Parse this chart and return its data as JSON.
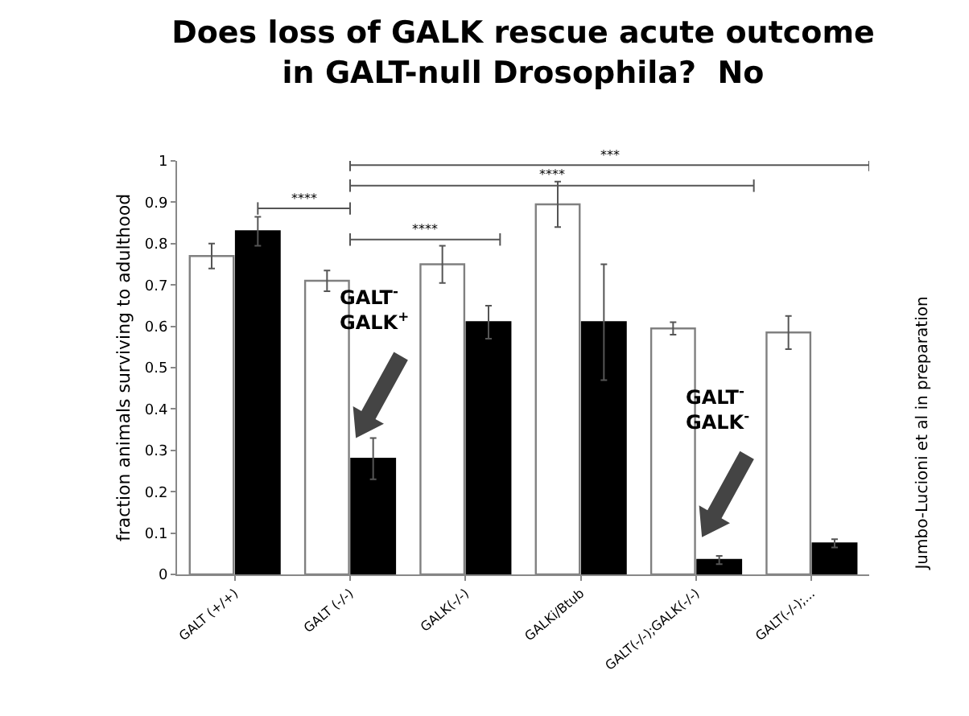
{
  "chart_data": {
    "type": "bar",
    "title": "Does loss of GALK rescue acute outcome\nin GALT-null Drosophila?  No",
    "ylabel": "fraction animals surviving to adulthood",
    "categories": [
      "GALT (+/+)",
      "GALT (-/-)",
      "GALK(-/-)",
      "GALKi/Btub",
      "GALT(-/-);GALK(-/-)",
      "GALT(-/-);..."
    ],
    "series": [
      {
        "color": "#ffffff",
        "values": [
          0.77,
          0.71,
          0.75,
          0.895,
          0.595,
          0.585
        ],
        "errors": [
          0.03,
          0.025,
          0.045,
          0.055,
          0.015,
          0.04
        ]
      },
      {
        "color": "#000000",
        "values": [
          0.83,
          0.28,
          0.61,
          0.61,
          0.035,
          0.075
        ],
        "errors": [
          0.035,
          0.05,
          0.04,
          0.14,
          0.01,
          0.01
        ]
      }
    ],
    "ylim": [
      0,
      1
    ],
    "yticks": [
      0,
      0.1,
      0.2,
      0.3,
      0.4,
      0.5,
      0.6,
      0.7,
      0.8,
      0.9,
      1
    ],
    "annotations": [
      "****",
      "****",
      "****",
      "***",
      "GALT$^{-}$\nGALK$^{+}$",
      "GALT$^{-}$\nGALK$^{-}$",
      "Jumbo-Lucioni et al in preparation"
    ]
  }
}
